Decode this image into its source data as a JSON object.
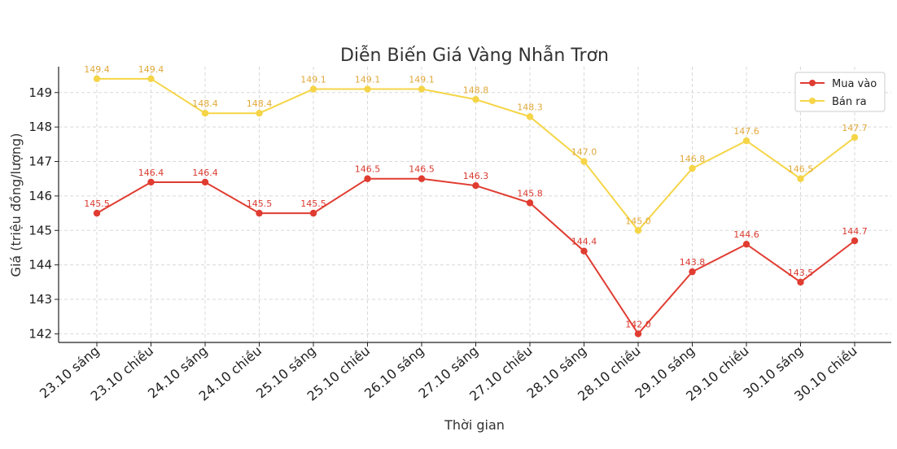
{
  "chart_data": {
    "type": "line",
    "title": "Diễn Biến Giá Vàng Nhẫn Trơn",
    "xlabel": "Thời gian",
    "ylabel": "Giá (triệu đồng/lượng)",
    "categories": [
      "23.10 sáng",
      "23.10 chiều",
      "24.10 sáng",
      "24.10 chiều",
      "25.10 sáng",
      "25.10 chiều",
      "26.10 sáng",
      "27.10 sáng",
      "27.10 chiều",
      "28.10 sáng",
      "28.10 chiều",
      "29.10 sáng",
      "29.10 chiều",
      "30.10 sáng",
      "30.10 chiều"
    ],
    "y_ticks": [
      142,
      143,
      144,
      145,
      146,
      147,
      148,
      149
    ],
    "ylim": [
      141.75,
      149.75
    ],
    "grid": true,
    "legend_position": "top-right",
    "series": [
      {
        "name": "Mua vào",
        "color": "#e03c31",
        "label_color": "#d93a2f",
        "values": [
          145.5,
          146.4,
          146.4,
          145.5,
          145.5,
          146.5,
          146.5,
          146.3,
          145.8,
          144.4,
          142.0,
          143.8,
          144.6,
          143.5,
          144.7
        ]
      },
      {
        "name": "Bán ra",
        "color": "#f5d547",
        "label_color": "#e0a83a",
        "values": [
          149.4,
          149.4,
          148.4,
          148.4,
          149.1,
          149.1,
          149.1,
          148.8,
          148.3,
          147.0,
          145.0,
          146.8,
          147.6,
          146.5,
          147.7
        ]
      }
    ]
  }
}
